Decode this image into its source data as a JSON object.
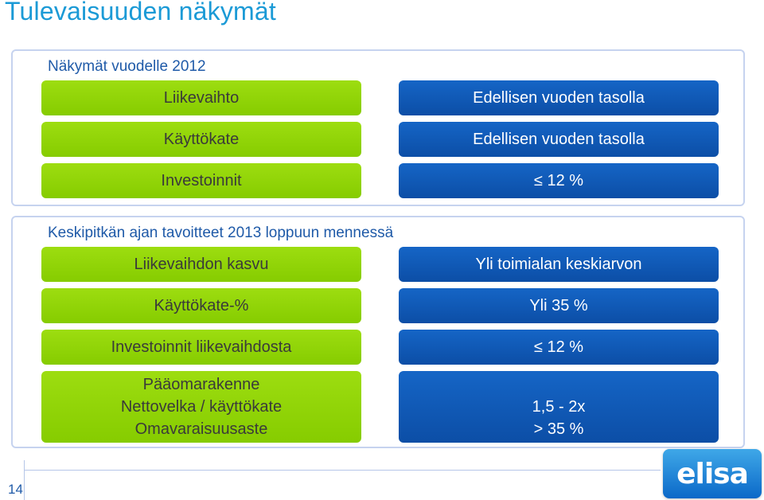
{
  "title": "Tulevaisuuden näkymät",
  "section1": {
    "heading": "Näkymät vuodelle 2012",
    "rows": [
      {
        "label": "Liikevaihto",
        "value": "Edellisen vuoden tasolla"
      },
      {
        "label": "Käyttökate",
        "value": "Edellisen vuoden tasolla"
      },
      {
        "label": "Investoinnit",
        "value": "≤ 12 %"
      }
    ]
  },
  "section2": {
    "heading": "Keskipitkän ajan tavoitteet 2013 loppuun mennessä",
    "rows": [
      {
        "label": "Liikevaihdon kasvu",
        "value": "Yli toimialan keskiarvon"
      },
      {
        "label": "Käyttökate-%",
        "value": "Yli 35 %"
      },
      {
        "label": "Investoinnit liikevaihdosta",
        "value": "≤ 12 %"
      }
    ],
    "last_row": {
      "label_lines": [
        "Pääomarakenne",
        "Nettovelka / käyttökate",
        "Omavaraisuusaste"
      ],
      "value_lines": [
        "",
        "1,5 - 2x",
        "> 35 %"
      ]
    }
  },
  "footer": {
    "page_number": "14",
    "logo_text": "elisa"
  },
  "colors": {
    "title": "#1b9ad6",
    "green_box": "#8fd400",
    "blue_box": "#0c4ea6",
    "panel_border": "#c6d3ef"
  }
}
